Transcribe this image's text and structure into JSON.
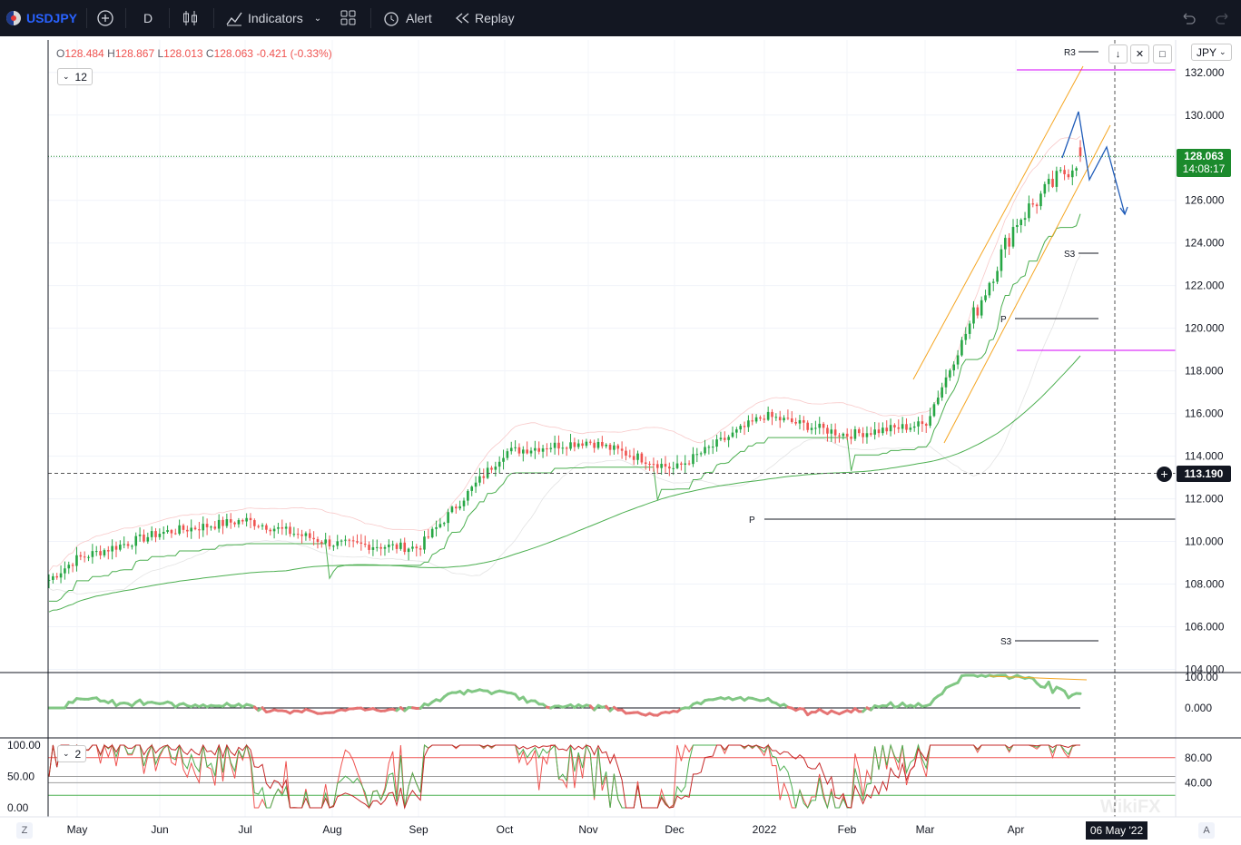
{
  "toolbar": {
    "symbol": "USDJPY",
    "interval": "D",
    "indicators": "Indicators",
    "alert": "Alert",
    "replay": "Replay"
  },
  "legend": {
    "o_key": "O",
    "o_val": "128.484",
    "h_key": "H",
    "h_val": "128.867",
    "l_key": "L",
    "l_val": "128.013",
    "c_key": "C",
    "c_val": "128.063",
    "change": "-0.421 (-0.33%)",
    "indicator_count": "12",
    "stoch_count": "2"
  },
  "price_scale": {
    "currency": "JPY",
    "last_price": "128.063",
    "countdown": "14:08:17",
    "crosshair_price": "113.190"
  },
  "pivot_labels": {
    "r3": "R3",
    "s3_top": "S3",
    "p_top": "P",
    "p_mid": "P",
    "s3_bottom": "S3"
  },
  "x_axis": {
    "labels": [
      "May",
      "Jun",
      "Jul",
      "Aug",
      "Sep",
      "Oct",
      "Nov",
      "Dec",
      "2022",
      "Feb",
      "Mar",
      "Apr"
    ],
    "crosshair_date": "06 May '22"
  },
  "bottom_buttons": {
    "left": "Z",
    "right": "A"
  },
  "watermark": "WikiFX",
  "colors": {
    "up": "#26a644",
    "down": "#ef5350",
    "background": "#ffffff",
    "toolbar": "#131722",
    "projection": "#1e5bb8",
    "channel": "#f5a623",
    "magenta": "#d500f9"
  },
  "chart_data": [
    {
      "type": "candlestick",
      "symbol": "USDJPY",
      "interval": "D",
      "x": [
        "2021-04-19",
        "2022-04-25"
      ],
      "ylim": [
        104,
        133
      ],
      "y_ticks": [
        "132.000",
        "130.000",
        "128.000",
        "126.000",
        "124.000",
        "122.000",
        "120.000",
        "118.000",
        "116.000",
        "114.000",
        "112.000",
        "110.000",
        "108.000",
        "106.000",
        "104.000"
      ],
      "anchors": [
        {
          "date": "Apr 2021",
          "close": 108.2
        },
        {
          "date": "May 2021",
          "close": 109.2
        },
        {
          "date": "Jun 2021",
          "close": 110.4
        },
        {
          "date": "Jul 2021",
          "close": 111.0
        },
        {
          "date": "Aug 2021",
          "close": 109.9
        },
        {
          "date": "Sep 2021",
          "close": 109.7
        },
        {
          "date": "Oct 2021",
          "close": 114.2
        },
        {
          "date": "Nov 2021",
          "close": 114.7
        },
        {
          "date": "Dec 2021",
          "close": 113.4
        },
        {
          "date": "Jan 2022",
          "close": 115.9
        },
        {
          "date": "Feb 2022",
          "close": 115.0
        },
        {
          "date": "Mar 2022",
          "close": 115.5
        },
        {
          "date": "Apr 2022",
          "close": 125.0
        },
        {
          "date": "Apr 29 2022",
          "close": 128.063
        }
      ],
      "last": {
        "open": 128.484,
        "high": 128.867,
        "low": 128.013,
        "close": 128.063
      }
    },
    {
      "type": "line",
      "name": "Oscillator",
      "ylim": [
        -100,
        100
      ],
      "y_ticks": [
        "100.00",
        "0.000"
      ]
    },
    {
      "type": "line",
      "name": "Stochastic",
      "ylim": [
        0,
        100
      ],
      "y_ticks_left": [
        "100.00",
        "50.00",
        "0.00"
      ],
      "y_ticks_right": [
        "80.00",
        "40.00"
      ]
    }
  ]
}
